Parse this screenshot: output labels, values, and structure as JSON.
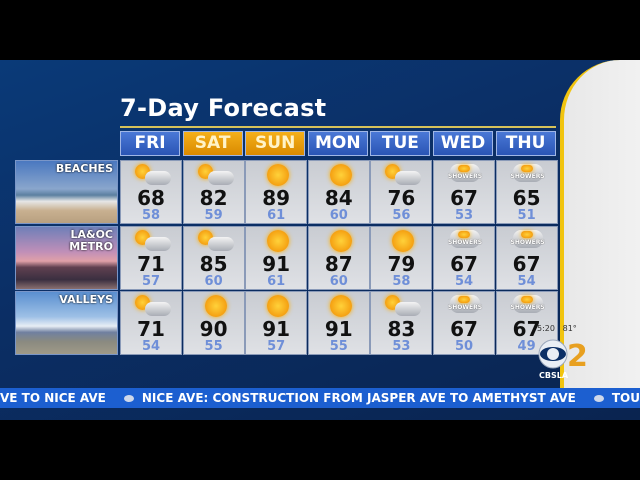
{
  "title": "7-Day Forecast",
  "days": [
    "FRI",
    "SAT",
    "SUN",
    "MON",
    "TUE",
    "WED",
    "THU"
  ],
  "weekend": [
    false,
    true,
    true,
    false,
    false,
    false,
    false
  ],
  "regions": [
    {
      "label": "BEACHES",
      "hi": [
        "68",
        "82",
        "89",
        "84",
        "76",
        "67",
        "65"
      ],
      "lo": [
        "58",
        "59",
        "61",
        "60",
        "56",
        "53",
        "51"
      ],
      "icons": [
        "partly-cloudy",
        "partly-cloudy",
        "sunny",
        "sunny",
        "partly-cloudy",
        "showers",
        "showers"
      ]
    },
    {
      "label": "LA&OC METRO",
      "hi": [
        "71",
        "85",
        "91",
        "87",
        "79",
        "67",
        "67"
      ],
      "lo": [
        "57",
        "60",
        "61",
        "60",
        "58",
        "54",
        "54"
      ],
      "icons": [
        "partly-cloudy",
        "partly-cloudy",
        "sunny",
        "sunny",
        "sunny",
        "showers",
        "showers"
      ]
    },
    {
      "label": "VALLEYS",
      "hi": [
        "71",
        "90",
        "91",
        "91",
        "83",
        "67",
        "67"
      ],
      "lo": [
        "54",
        "55",
        "57",
        "55",
        "53",
        "50",
        "49"
      ],
      "icons": [
        "partly-cloudy",
        "sunny",
        "sunny",
        "sunny",
        "partly-cloudy",
        "showers",
        "showers"
      ]
    }
  ],
  "showers_text": "SHOWERS",
  "ticker": {
    "items": [
      "VE TO NICE AVE",
      "NICE AVE: CONSTRUCTION FROM JASPER AVE TO AMETHYST AVE",
      "TOURMALINE"
    ]
  },
  "station": {
    "time": "5:20",
    "temp": "81°",
    "logo_text": "CBSLA",
    "channel": "2"
  },
  "colors": {
    "header": "#2a55b5",
    "weekend": "#f5b01a",
    "low_temp": "#6f8fd8",
    "ticker": "#1c5fd0",
    "accent": "#f1c40f"
  }
}
